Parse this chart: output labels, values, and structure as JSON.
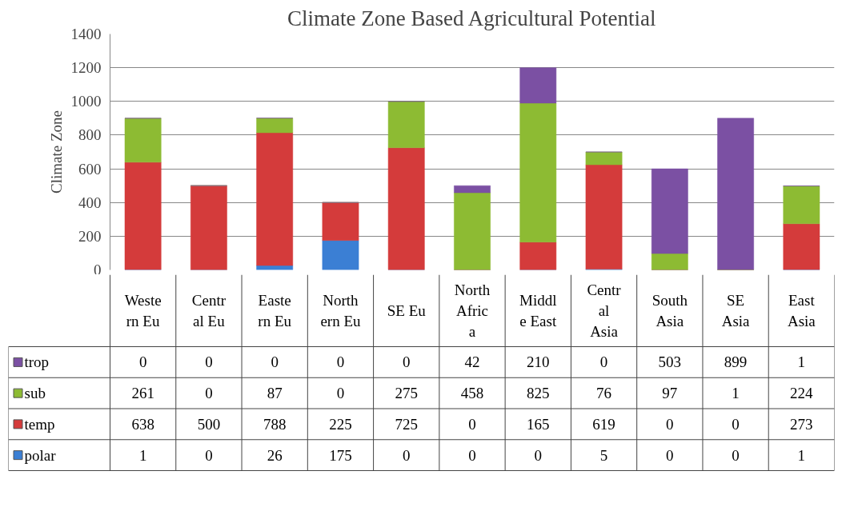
{
  "chart_data": {
    "type": "bar",
    "title": "Climate Zone Based Agricultural Potential",
    "ylabel": "Climate Zone",
    "categories": [
      "Western Eu",
      "Central Eu",
      "Eastern Eu",
      "Northern Eu",
      "SE Eu",
      "North Africa",
      "Middle East",
      "Central Asia",
      "South Asia",
      "SE Asia",
      "East Asia"
    ],
    "series": [
      {
        "name": "polar",
        "color": "#3b7fd4",
        "values": [
          1,
          0,
          26,
          175,
          0,
          0,
          0,
          5,
          0,
          0,
          1
        ]
      },
      {
        "name": "temp",
        "color": "#d43b3b",
        "values": [
          638,
          500,
          788,
          225,
          725,
          0,
          165,
          619,
          0,
          0,
          273
        ]
      },
      {
        "name": "sub",
        "color": "#8dbb33",
        "values": [
          261,
          0,
          87,
          0,
          275,
          458,
          825,
          76,
          97,
          1,
          224
        ]
      },
      {
        "name": "trop",
        "color": "#7b50a3",
        "values": [
          0,
          0,
          0,
          0,
          0,
          42,
          210,
          0,
          503,
          899,
          1
        ]
      }
    ],
    "stacked": true,
    "ylim": [
      0,
      1400
    ],
    "yticks": [
      0,
      200,
      400,
      600,
      800,
      1000,
      1200,
      1400
    ],
    "grid": "y",
    "legend": "bottom",
    "data_labels": true
  }
}
